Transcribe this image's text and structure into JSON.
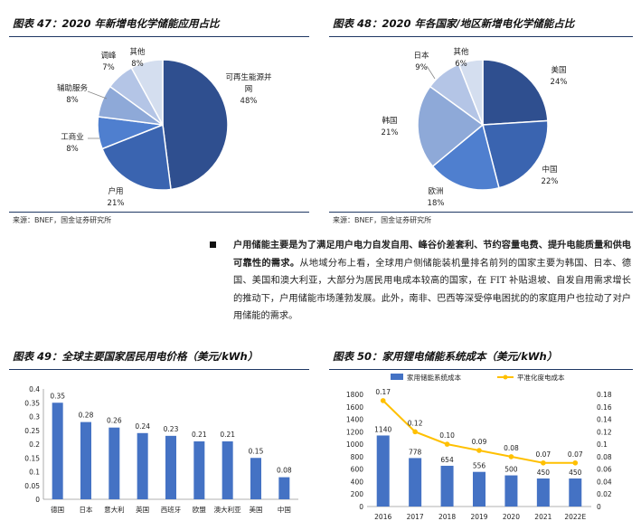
{
  "fig47": {
    "title": "图表 47：2020 年新增电化学储能应用占比",
    "source": "来源：BNEF，国金证券研究所",
    "chart_data": {
      "type": "pie",
      "slices": [
        {
          "name": "可再生能源并网",
          "pct_label": "48%",
          "value": 48,
          "color": "#2f4f8f"
        },
        {
          "name": "户用",
          "pct_label": "21%",
          "value": 21,
          "color": "#3a64b0"
        },
        {
          "name": "工商业",
          "pct_label": "8%",
          "value": 8,
          "color": "#4f7fcf"
        },
        {
          "name": "辅助服务",
          "pct_label": "8%",
          "value": 8,
          "color": "#8ea9d8"
        },
        {
          "name": "调峰",
          "pct_label": "7%",
          "value": 7,
          "color": "#b4c5e6"
        },
        {
          "name": "其他",
          "pct_label": "8%",
          "value": 8,
          "color": "#d4deef"
        }
      ]
    }
  },
  "fig48": {
    "title": "图表 48：2020 年各国家/地区新增电化学储能占比",
    "source": "来源：BNEF，国金证券研究所",
    "chart_data": {
      "type": "pie",
      "slices": [
        {
          "name": "美国",
          "pct_label": "24%",
          "value": 24,
          "color": "#2f4f8f"
        },
        {
          "name": "中国",
          "pct_label": "22%",
          "value": 22,
          "color": "#3a64b0"
        },
        {
          "name": "欧洲",
          "pct_label": "18%",
          "value": 18,
          "color": "#4f7fcf"
        },
        {
          "name": "韩国",
          "pct_label": "21%",
          "value": 21,
          "color": "#8ea9d8"
        },
        {
          "name": "日本",
          "pct_label": "9%",
          "value": 9,
          "color": "#b4c5e6"
        },
        {
          "name": "其他",
          "pct_label": "6%",
          "value": 6,
          "color": "#d4deef"
        }
      ]
    }
  },
  "paragraph": {
    "bold": "户用储能主要是为了满足用户电力自发自用、峰谷价差套利、节约容量电费、提升电能质量和供电可靠性的需求。",
    "text": "从地域分布上看，全球用户侧储能装机量排名前列的国家主要为韩国、日本、德国、美国和澳大利亚，大部分为居民用电成本较高的国家，在 FIT 补贴退坡、自发自用需求增长的推动下，户用储能市场蓬勃发展。此外，南非、巴西等深受停电困扰的的家庭用户也拉动了对户用储能的需求。"
  },
  "fig49": {
    "title": "图表 49：全球主要国家居民用电价格（美元/kWh）",
    "chart_data": {
      "type": "bar",
      "categories": [
        "德国",
        "日本",
        "意大利",
        "英国",
        "西班牙",
        "欧盟",
        "澳大利亚",
        "美国",
        "中国"
      ],
      "values": [
        0.35,
        0.28,
        0.26,
        0.24,
        0.23,
        0.21,
        0.21,
        0.15,
        0.08
      ],
      "value_labels": [
        "0.35",
        "0.28",
        "0.26",
        "0.24",
        "0.23",
        "0.21",
        "0.21",
        "0.15",
        "0.08"
      ],
      "ylim": [
        0,
        0.4
      ],
      "yticks": [
        "0",
        "0.05",
        "0.1",
        "0.15",
        "0.2",
        "0.25",
        "0.3",
        "0.35",
        "0.4"
      ],
      "bar_color": "#4472c4"
    }
  },
  "fig50": {
    "title": "图表 50：家用锂电储能系统成本（美元/kWh）",
    "chart_data": {
      "type": "bar+line",
      "categories": [
        "2016",
        "2017",
        "2018",
        "2019",
        "2020",
        "2021",
        "2022E"
      ],
      "series": [
        {
          "name": "家用储能系统成本",
          "values": [
            1140,
            778,
            654,
            556,
            500,
            450,
            450
          ],
          "value_labels": [
            "1140",
            "778",
            "654",
            "556",
            "500",
            "450",
            "450"
          ],
          "color": "#4472c4",
          "axis": "left"
        },
        {
          "name": "平准化度电成本",
          "values": [
            0.17,
            0.12,
            0.1,
            0.09,
            0.08,
            0.07,
            0.07
          ],
          "value_labels": [
            "0.17",
            "0.12",
            "0.10",
            "0.09",
            "0.08",
            "0.07",
            "0.07"
          ],
          "color": "#ffc000",
          "axis": "right"
        }
      ],
      "ylim_left": [
        0,
        1800
      ],
      "yticks_left": [
        "0",
        "200",
        "400",
        "600",
        "800",
        "1000",
        "1200",
        "1400",
        "1600",
        "1800"
      ],
      "ylim_right": [
        0,
        0.18
      ],
      "yticks_right": [
        "0",
        "0.02",
        "0.04",
        "0.06",
        "0.08",
        "0.1",
        "0.12",
        "0.14",
        "0.16",
        "0.18"
      ]
    }
  }
}
